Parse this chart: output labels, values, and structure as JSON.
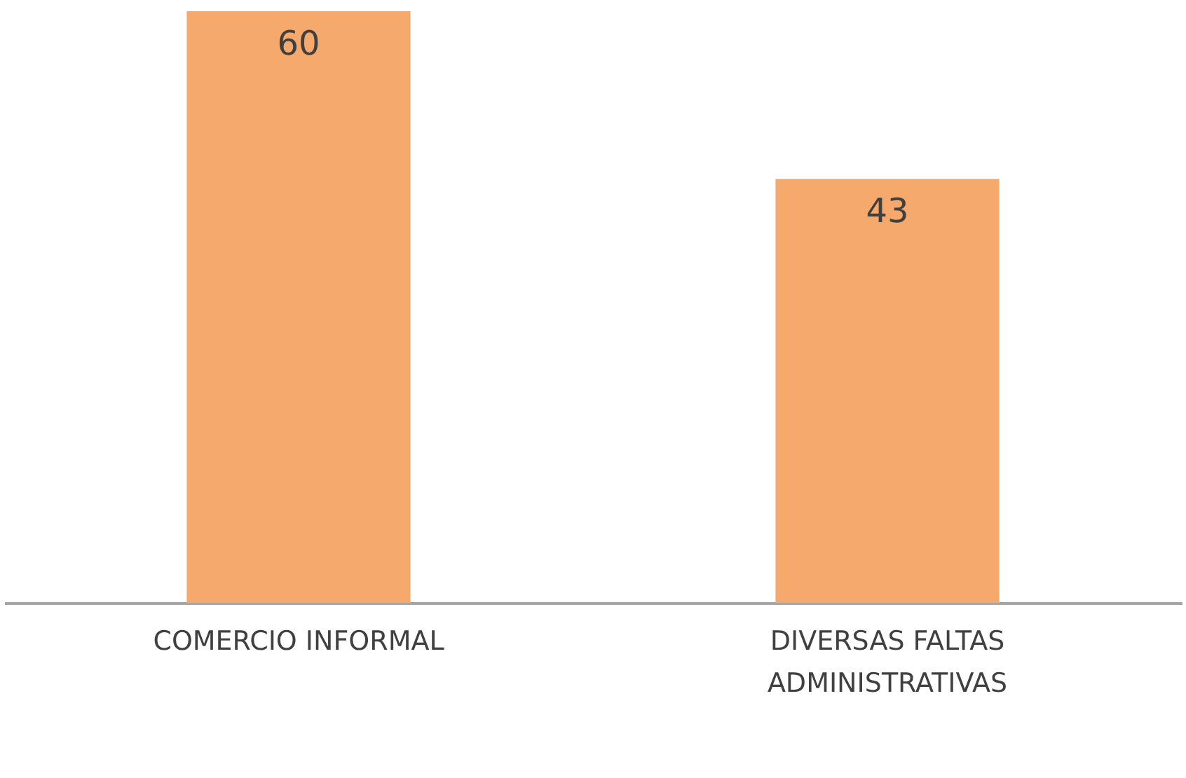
{
  "chart_data": {
    "type": "bar",
    "categories": [
      "COMERCIO INFORMAL",
      "DIVERSAS FALTAS ADMINISTRATIVAS"
    ],
    "values": [
      60,
      43
    ],
    "color": "#f6a96c",
    "data_labels": true
  }
}
